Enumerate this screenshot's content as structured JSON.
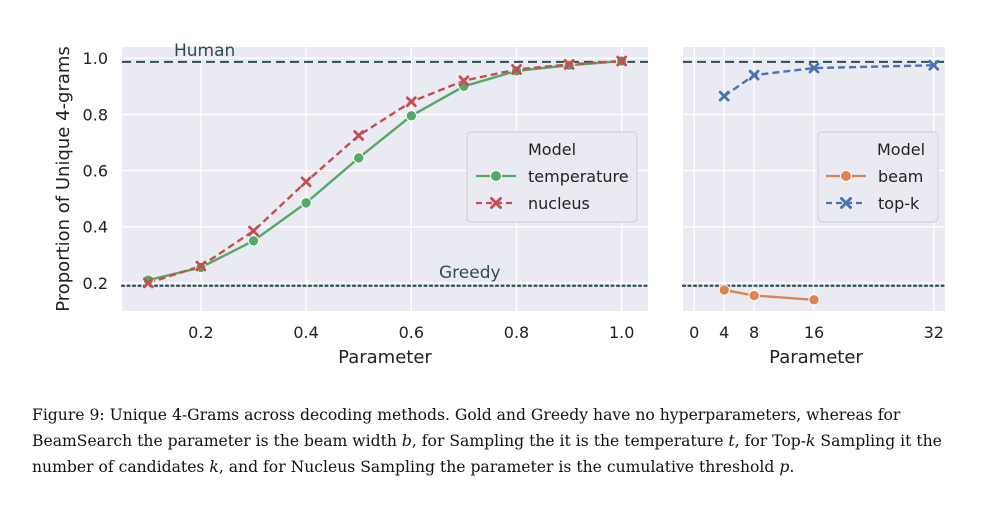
{
  "chart_data": [
    {
      "type": "line",
      "ylabel": "Proportion of Unique 4-grams",
      "xlabel": "Parameter",
      "xlim": [
        0.05,
        1.05
      ],
      "ylim": [
        0.1,
        1.04
      ],
      "xticks": [
        0.2,
        0.4,
        0.6,
        0.8,
        1.0
      ],
      "xtick_labels": [
        "0.2",
        "0.4",
        "0.6",
        "0.8",
        "1.0"
      ],
      "yticks": [
        0.2,
        0.4,
        0.6,
        0.8,
        1.0
      ],
      "ytick_labels": [
        "0.2",
        "0.4",
        "0.6",
        "0.8",
        "1.0"
      ],
      "grid": true,
      "legend_title": "Model",
      "legend_placement": "center-right",
      "reference_lines": [
        {
          "label": "Human",
          "y": 0.987,
          "style": "dashed",
          "color": "#2f4f4f"
        },
        {
          "label": "Greedy",
          "y": 0.19,
          "style": "dotted",
          "color": "#2f4f4f"
        }
      ],
      "series": [
        {
          "name": "temperature",
          "color": "#55a868",
          "marker": "circle",
          "dash": "solid",
          "x": [
            0.1,
            0.2,
            0.3,
            0.4,
            0.5,
            0.6,
            0.7,
            0.8,
            0.9,
            1.0
          ],
          "y": [
            0.21,
            0.255,
            0.35,
            0.485,
            0.645,
            0.795,
            0.9,
            0.955,
            0.975,
            0.99
          ]
        },
        {
          "name": "nucleus",
          "color": "#c44e52",
          "marker": "x",
          "dash": "dashed",
          "x": [
            0.1,
            0.2,
            0.3,
            0.4,
            0.5,
            0.6,
            0.7,
            0.8,
            0.9,
            1.0
          ],
          "y": [
            0.2,
            0.26,
            0.385,
            0.56,
            0.725,
            0.845,
            0.92,
            0.96,
            0.978,
            0.99
          ]
        }
      ]
    },
    {
      "type": "line",
      "xlabel": "Parameter",
      "xlim": [
        -1.5,
        33.5
      ],
      "ylim": [
        0.1,
        1.04
      ],
      "xticks": [
        0,
        4,
        8,
        16,
        32
      ],
      "xtick_labels": [
        "0",
        "4",
        "8",
        "16",
        "32"
      ],
      "grid": true,
      "legend_title": "Model",
      "legend_placement": "center-right",
      "reference_lines": [
        {
          "y": 0.987,
          "style": "dashed",
          "color": "#2f4f4f"
        },
        {
          "y": 0.19,
          "style": "dotted",
          "color": "#2f4f4f"
        }
      ],
      "series": [
        {
          "name": "beam",
          "color": "#dd8452",
          "marker": "circle",
          "dash": "solid",
          "x": [
            4,
            8,
            16
          ],
          "y": [
            0.175,
            0.155,
            0.14
          ]
        },
        {
          "name": "top-k",
          "color": "#4c72b0",
          "marker": "x",
          "dash": "dashed",
          "x": [
            4,
            8,
            16,
            32
          ],
          "y": [
            0.865,
            0.94,
            0.965,
            0.975
          ]
        }
      ]
    }
  ],
  "caption": {
    "line1": "Figure 9: Unique 4-Grams across decoding methods. Gold and Greedy have no hyperparameters, whereas for",
    "line2_a": "BeamSearch the parameter is the beam width ",
    "line2_b": "b",
    "line2_c": ", for Sampling the it is the temperature ",
    "line2_d": "t",
    "line2_e": ", for Top-",
    "line2_f": "k",
    "line2_g": " Sampling it the",
    "line3_a": "number of candidates ",
    "line3_b": "k",
    "line3_c": ", and for Nucleus Sampling the parameter is the cumulative threshold ",
    "line3_d": "p",
    "line3_e": "."
  }
}
